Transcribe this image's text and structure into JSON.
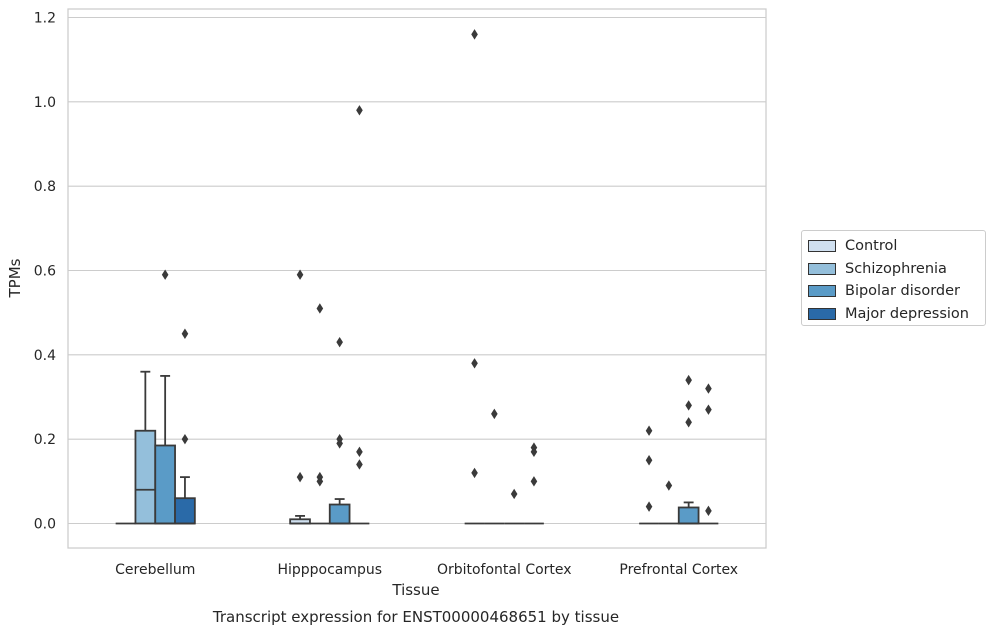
{
  "chart_data": {
    "type": "box",
    "xlabel": "Tissue",
    "ylabel": "TPMs",
    "caption": "Transcript expression for ENST00000468651 by tissue",
    "ylim": [
      -0.055,
      1.22
    ],
    "yticks": [
      "0.0",
      "0.2",
      "0.4",
      "0.6",
      "0.8",
      "1.0",
      "1.2"
    ],
    "ytick_values": [
      0,
      0.2,
      0.4,
      0.6,
      0.8,
      1.0,
      1.2
    ],
    "grid": "horizontal",
    "legend_position": "right",
    "categories": [
      "Cerebellum",
      "Hipppocampus",
      "Orbitofontal Cortex",
      "Prefrontal Cortex"
    ],
    "series": [
      {
        "name": "Control",
        "color": "#d0e0f0",
        "boxes": [
          {
            "q1": 0,
            "median": 0,
            "q3": 0,
            "whisker_low": 0,
            "whisker_high": 0,
            "outliers": []
          },
          {
            "q1": 0,
            "median": 0,
            "q3": 0.01,
            "whisker_low": 0,
            "whisker_high": 0.018,
            "outliers": [
              0.59,
              0.11
            ]
          },
          {
            "q1": 0,
            "median": 0,
            "q3": 0,
            "whisker_low": 0,
            "whisker_high": 0,
            "outliers": [
              1.16,
              0.38,
              0.12
            ]
          },
          {
            "q1": 0,
            "median": 0,
            "q3": 0,
            "whisker_low": 0,
            "whisker_high": 0,
            "outliers": [
              0.22,
              0.15,
              0.04
            ]
          }
        ]
      },
      {
        "name": "Schizophrenia",
        "color": "#94bfdb",
        "boxes": [
          {
            "q1": 0,
            "median": 0.08,
            "q3": 0.22,
            "whisker_low": 0,
            "whisker_high": 0.36,
            "outliers": []
          },
          {
            "q1": 0,
            "median": 0,
            "q3": 0,
            "whisker_low": 0,
            "whisker_high": 0,
            "outliers": [
              0.51,
              0.11,
              0.1
            ]
          },
          {
            "q1": 0,
            "median": 0,
            "q3": 0,
            "whisker_low": 0,
            "whisker_high": 0,
            "outliers": [
              0.26
            ]
          },
          {
            "q1": 0,
            "median": 0,
            "q3": 0,
            "whisker_low": 0,
            "whisker_high": 0,
            "outliers": [
              0.09
            ]
          }
        ]
      },
      {
        "name": "Bipolar disorder",
        "color": "#5a9bc7",
        "boxes": [
          {
            "q1": 0,
            "median": 0,
            "q3": 0.185,
            "whisker_low": 0,
            "whisker_high": 0.35,
            "outliers": [
              0.59
            ]
          },
          {
            "q1": 0,
            "median": 0,
            "q3": 0.045,
            "whisker_low": 0,
            "whisker_high": 0.058,
            "outliers": [
              0.43,
              0.2,
              0.19
            ]
          },
          {
            "q1": 0,
            "median": 0,
            "q3": 0,
            "whisker_low": 0,
            "whisker_high": 0,
            "outliers": [
              0.07
            ]
          },
          {
            "q1": 0,
            "median": 0,
            "q3": 0.038,
            "whisker_low": 0,
            "whisker_high": 0.05,
            "outliers": [
              0.34,
              0.28,
              0.24
            ]
          }
        ]
      },
      {
        "name": "Major depression",
        "color": "#2a6aa8",
        "boxes": [
          {
            "q1": 0,
            "median": 0,
            "q3": 0.06,
            "whisker_low": 0,
            "whisker_high": 0.11,
            "outliers": [
              0.45,
              0.2
            ]
          },
          {
            "q1": 0,
            "median": 0,
            "q3": 0,
            "whisker_low": 0,
            "whisker_high": 0,
            "outliers": [
              0.98,
              0.17,
              0.14
            ]
          },
          {
            "q1": 0,
            "median": 0,
            "q3": 0,
            "whisker_low": 0,
            "whisker_high": 0,
            "outliers": [
              0.18,
              0.17,
              0.1
            ]
          },
          {
            "q1": 0,
            "median": 0,
            "q3": 0,
            "whisker_low": 0,
            "whisker_high": 0,
            "outliers": [
              0.32,
              0.27,
              0.03
            ]
          }
        ]
      }
    ]
  }
}
